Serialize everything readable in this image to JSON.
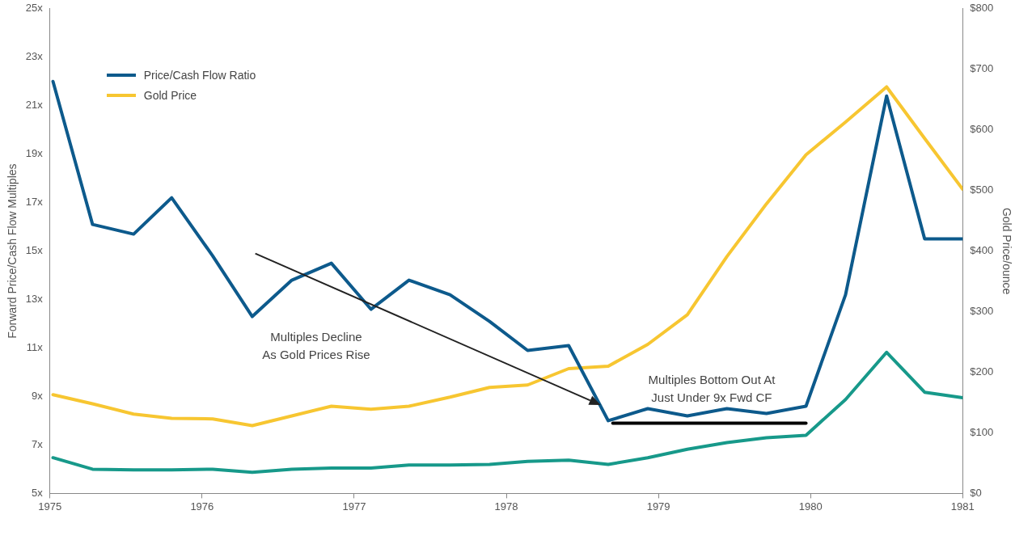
{
  "chart_data": {
    "type": "line",
    "ylabel": "Forward Price/Cash Flow Multiples",
    "y2label": "Gold Price/ounce",
    "xlim": [
      1975,
      1981
    ],
    "xticks": [
      1975,
      1976,
      1977,
      1978,
      1979,
      1980,
      1981
    ],
    "ylim": [
      5,
      25
    ],
    "yticks": [
      {
        "value": 5,
        "label": "5x"
      },
      {
        "value": 7,
        "label": "7x"
      },
      {
        "value": 9,
        "label": "9x"
      },
      {
        "value": 11,
        "label": "11x"
      },
      {
        "value": 13,
        "label": "13x"
      },
      {
        "value": 15,
        "label": "15x"
      },
      {
        "value": 17,
        "label": "17x"
      },
      {
        "value": 19,
        "label": "19x"
      },
      {
        "value": 21,
        "label": "21x"
      },
      {
        "value": 23,
        "label": "23x"
      },
      {
        "value": 25,
        "label": "25x"
      }
    ],
    "y2lim": [
      0,
      800
    ],
    "y2ticks": [
      {
        "value": 0,
        "label": "$0"
      },
      {
        "value": 100,
        "label": "$100"
      },
      {
        "value": 200,
        "label": "$200"
      },
      {
        "value": 300,
        "label": "$300"
      },
      {
        "value": 400,
        "label": "$400"
      },
      {
        "value": 500,
        "label": "$500"
      },
      {
        "value": 600,
        "label": "$600"
      },
      {
        "value": 700,
        "label": "$700"
      },
      {
        "value": 800,
        "label": "$800"
      }
    ],
    "x": [
      1975.02,
      1975.28,
      1975.55,
      1975.8,
      1976.07,
      1976.33,
      1976.59,
      1976.85,
      1977.11,
      1977.36,
      1977.63,
      1977.89,
      1978.14,
      1978.41,
      1978.67,
      1978.93,
      1979.19,
      1979.45,
      1979.71,
      1979.97,
      1980.23,
      1980.5,
      1980.75,
      1981.0
    ],
    "grid": false,
    "legend": "top left",
    "marker": "none",
    "line_style": "solid",
    "series": [
      {
        "name": "Price/Cash Flow Ratio",
        "color": "#0d5a8c",
        "values": [
          22.0,
          16.1,
          15.7,
          17.2,
          14.8,
          12.3,
          13.8,
          14.5,
          12.6,
          13.8,
          13.2,
          12.1,
          10.9,
          11.1,
          8.0,
          8.5,
          8.2,
          8.5,
          8.3,
          8.6,
          13.2,
          21.4,
          15.5,
          15.5
        ]
      },
      {
        "name": "Gold Price",
        "color": "#f7c631",
        "axis": "y2",
        "values": [
          163,
          148,
          131,
          124,
          123,
          112,
          128,
          144,
          139,
          144,
          159,
          175,
          179,
          206,
          210,
          246,
          295,
          391,
          478,
          559,
          613,
          671,
          586,
          502
        ]
      },
      {
        "color": "#17998a",
        "axis": "y2",
        "values": [
          59,
          40,
          39,
          39,
          40,
          35,
          40,
          42,
          42,
          47,
          47,
          48,
          53,
          55,
          48,
          59,
          73,
          84,
          92,
          96,
          155,
          233,
          167,
          158
        ]
      },
      {
        "color": "#000000",
        "x": [
          1978.7,
          1979.97
        ],
        "values": [
          7.9,
          7.9
        ]
      }
    ],
    "annotations": [
      "Multiples Decline\nAs Gold Prices Rise",
      "Multiples Bottom Out At\nJust Under 9x Fwd CF"
    ]
  }
}
